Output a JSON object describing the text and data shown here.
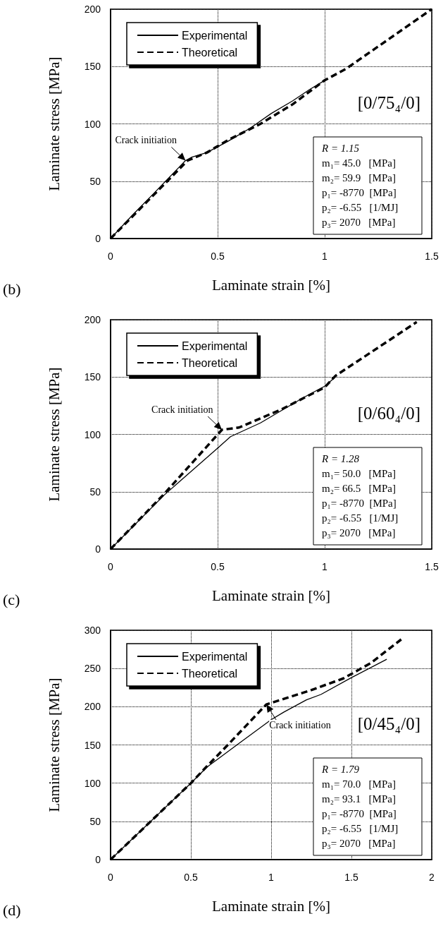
{
  "chart_data": [
    {
      "type": "line",
      "xlabel": "Laminate strain [%]",
      "ylabel": "Laminate stress [MPa]",
      "xlim": [
        0,
        1.5
      ],
      "xticks": [
        0,
        0.5,
        1,
        1.5
      ],
      "ylim": [
        0,
        200
      ],
      "yticks": [
        0,
        50,
        100,
        150,
        200
      ],
      "grid": true,
      "legend": "top left",
      "marker": "none",
      "annotations": [
        "(b)",
        {
          "text": "Crack initiation",
          "x": 0.35,
          "y": 68
        },
        "[0/75₄/0]",
        "R = 1.15",
        "m₁= 45.0   [MPa]",
        "m₂= 59.9   [MPa]",
        "p₁= -8770  [MPa]",
        "p₂= -6.55   [1/MJ]",
        "p₃= 2070   [MPa]"
      ],
      "series": [
        {
          "name": "Experimental",
          "color": "#000000",
          "line_style": "solid",
          "x": [
            0,
            0.1,
            0.2,
            0.35,
            0.38,
            0.45,
            0.55,
            0.65,
            0.75,
            0.85,
            0.93,
            1.01
          ],
          "values": [
            0,
            20,
            39,
            68,
            71,
            75,
            85,
            96,
            109,
            120,
            130,
            139
          ]
        },
        {
          "name": "Theoretical",
          "color": "#000000",
          "line_style": "dashed",
          "x": [
            0,
            0.36,
            0.45,
            0.55,
            0.7,
            0.85,
            1.0,
            1.1,
            1.5
          ],
          "values": [
            0,
            68,
            75,
            86,
            100,
            117,
            138,
            148,
            200
          ]
        }
      ]
    },
    {
      "type": "line",
      "xlabel": "Laminate strain [%]",
      "ylabel": "Laminate stress [MPa]",
      "xlim": [
        0,
        1.5
      ],
      "xticks": [
        0,
        0.5,
        1,
        1.5
      ],
      "ylim": [
        0,
        200
      ],
      "yticks": [
        0,
        50,
        100,
        150,
        200
      ],
      "grid": true,
      "legend": "top left",
      "marker": "none",
      "annotations": [
        "(c)",
        {
          "text": "Crack initiation",
          "x": 0.52,
          "y": 104
        },
        "[0/60₄/0]",
        "R = 1.28",
        "m₁= 50.0   [MPa]",
        "m₂= 66.5   [MPa]",
        "p₁= -8770  [MPa]",
        "p₂= -6.55   [1/MJ]",
        "p₃= 2070   [MPa]"
      ],
      "series": [
        {
          "name": "Experimental",
          "color": "#000000",
          "line_style": "solid",
          "x": [
            0,
            0.25,
            0.5,
            0.56,
            0.7,
            0.9,
            1.0,
            1.05
          ],
          "values": [
            0,
            47,
            88,
            98,
            110,
            132,
            142,
            150
          ]
        },
        {
          "name": "Theoretical",
          "color": "#000000",
          "line_style": "dashed",
          "x": [
            0,
            0.25,
            0.52,
            0.6,
            0.8,
            1.0,
            1.05,
            1.43
          ],
          "values": [
            0,
            48,
            104,
            106,
            122,
            141,
            151,
            198
          ]
        }
      ]
    },
    {
      "type": "line",
      "xlabel": "Laminate strain [%]",
      "ylabel": "Laminate stress [MPa]",
      "xlim": [
        0,
        2
      ],
      "xticks": [
        0,
        0.5,
        1,
        1.5,
        2
      ],
      "ylim": [
        0,
        300
      ],
      "yticks": [
        0,
        50,
        100,
        150,
        200,
        250,
        300
      ],
      "grid": true,
      "legend": "top left",
      "marker": "none",
      "annotations": [
        "(d)",
        {
          "text": "Crack initiation",
          "x": 0.97,
          "y": 203
        },
        "[0/45₄/0]",
        "R = 1.79",
        "m₁= 70.0   [MPa]",
        "m₂= 93.1   [MPa]",
        "p₁= -8770  [MPa]",
        "p₂= -6.55   [1/MJ]",
        "p₃= 2070   [MPa]"
      ],
      "series": [
        {
          "name": "Experimental",
          "color": "#000000",
          "line_style": "solid",
          "x": [
            0,
            0.5,
            0.6,
            0.8,
            1.0,
            1.08,
            1.22,
            1.31,
            1.5,
            1.72
          ],
          "values": [
            0,
            100,
            121,
            152,
            183,
            193,
            209,
            216,
            238,
            262
          ]
        },
        {
          "name": "Theoretical",
          "color": "#000000",
          "line_style": "dashed",
          "x": [
            0,
            0.5,
            0.6,
            0.73,
            0.97,
            1.0,
            1.24,
            1.45,
            1.62,
            1.81
          ],
          "values": [
            0,
            100,
            122,
            150,
            203,
            205,
            221,
            237,
            257,
            288
          ]
        }
      ]
    }
  ]
}
